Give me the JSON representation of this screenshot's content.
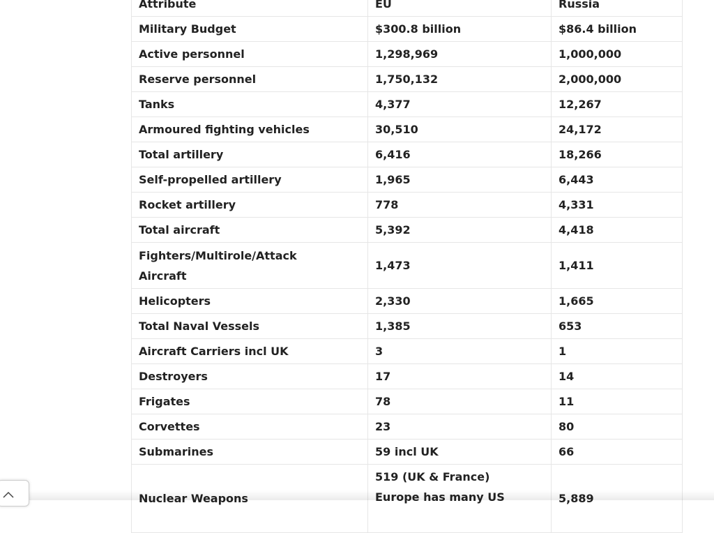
{
  "table": {
    "header": [
      "Attribute",
      "EU",
      "Russia"
    ],
    "rows": [
      [
        "Military Budget",
        "$300.8 billion",
        "$86.4 billion"
      ],
      [
        "Active personnel",
        "1,298,969",
        "1,000,000"
      ],
      [
        "Reserve personnel",
        "1,750,132",
        "2,000,000"
      ],
      [
        "Tanks",
        "4,377",
        "12,267"
      ],
      [
        "Armoured fighting vehicles",
        "30,510",
        "24,172"
      ],
      [
        "Total artillery",
        "6,416",
        "18,266"
      ],
      [
        "Self-propelled artillery",
        "1,965",
        "6,443"
      ],
      [
        "Rocket artillery",
        "778",
        "4,331"
      ],
      [
        "Total aircraft",
        "5,392",
        "4,418"
      ],
      [
        [
          "Fighters/Multirole/Attack",
          "Aircraft"
        ],
        "1,473",
        "1,411"
      ],
      [
        "Helicopters",
        "2,330",
        "1,665"
      ],
      [
        "Total Naval Vessels",
        "1,385",
        "653"
      ],
      [
        "Aircraft Carriers incl UK",
        "3",
        "1"
      ],
      [
        "Destroyers",
        "17",
        "14"
      ],
      [
        "Frigates",
        "78",
        "11"
      ],
      [
        "Corvettes",
        "23",
        "80"
      ],
      [
        "Submarines",
        "59 incl UK",
        "66"
      ],
      [
        "Nuclear Weapons",
        [
          "519 (UK & France)",
          "Europe has many US"
        ],
        "5,889"
      ]
    ]
  }
}
